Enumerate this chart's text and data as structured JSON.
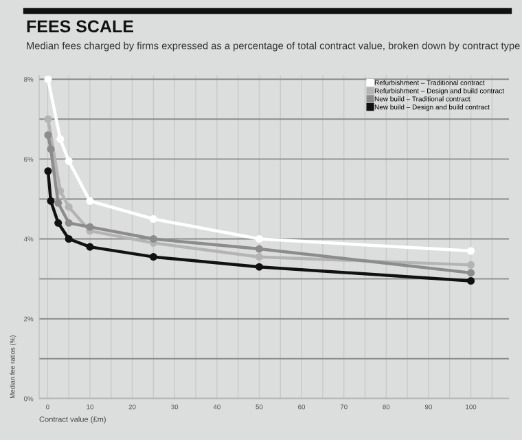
{
  "chart_data": {
    "type": "line",
    "title": "FEES SCALE",
    "subtitle": "Median fees charged by firms expressed as a percentage of total contract value, broken down by contract type",
    "xlabel": "Contract value (£m)",
    "ylabel": "Median fee ratios (%)",
    "series": [
      {
        "name": "Refurbishment – Traditional contract",
        "color": "#ffffff",
        "x": [
          0.1,
          3,
          5,
          10,
          25,
          50,
          100
        ],
        "values": [
          8.0,
          6.5,
          5.95,
          4.95,
          4.5,
          4.0,
          3.7
        ]
      },
      {
        "name": "Refurbishment – Design and build contract",
        "color": "#b4b4b4",
        "x": [
          0.1,
          3,
          5,
          10,
          25,
          50,
          100
        ],
        "values": [
          7.0,
          5.2,
          4.8,
          4.2,
          3.9,
          3.55,
          3.35
        ]
      },
      {
        "name": "New build – Traditional contract",
        "color": "#8c8c8c",
        "x": [
          0.1,
          0.75,
          2.5,
          5,
          10,
          25,
          50,
          100
        ],
        "values": [
          6.6,
          6.25,
          4.9,
          4.4,
          4.3,
          4.0,
          3.75,
          3.15
        ]
      },
      {
        "name": "New build – Design and build contract",
        "color": "#111111",
        "x": [
          0.1,
          0.75,
          2.5,
          5,
          10,
          25,
          50,
          100
        ],
        "values": [
          5.7,
          4.95,
          4.4,
          4.0,
          3.8,
          3.55,
          3.3,
          2.95
        ]
      }
    ],
    "xlim": [
      -2,
      109
    ],
    "ylim": [
      0,
      8.1
    ],
    "xticks": [
      0,
      {
        "value": 5,
        "label": null
      },
      10,
      {
        "value": 15,
        "label": null
      },
      20,
      {
        "value": 25,
        "label": null
      },
      30,
      {
        "value": 35,
        "label": null
      },
      40,
      {
        "value": 45,
        "label": null
      },
      50,
      {
        "value": 55,
        "label": null
      },
      60,
      {
        "value": 65,
        "label": null
      },
      70,
      {
        "value": 75,
        "label": null
      },
      80,
      {
        "value": 85,
        "label": null
      },
      90,
      {
        "value": 95,
        "label": null
      },
      100,
      {
        "value": 105,
        "label": null
      }
    ],
    "yticks": [
      {
        "value": 0,
        "label": "0%"
      },
      {
        "value": 1,
        "label": null
      },
      {
        "value": 2,
        "label": "2%"
      },
      {
        "value": 3,
        "label": null
      },
      {
        "value": 4,
        "label": "4%"
      },
      {
        "value": 5,
        "label": null
      },
      {
        "value": 6,
        "label": "6%"
      },
      {
        "value": 7,
        "label": null
      },
      {
        "value": 8,
        "label": "8%"
      }
    ],
    "grid": true,
    "legend": "top right",
    "marker": "circle",
    "line_style": "solid"
  }
}
